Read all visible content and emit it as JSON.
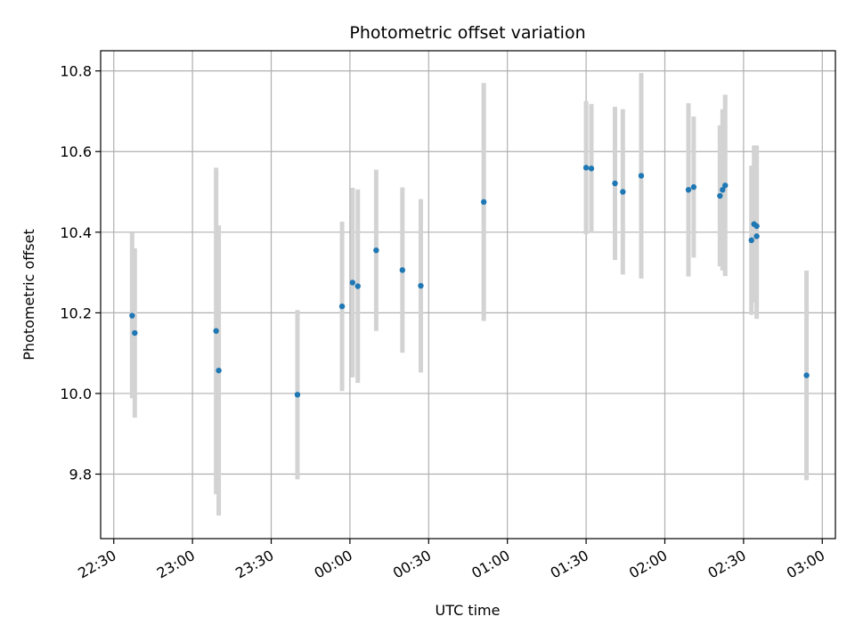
{
  "chart_data": {
    "type": "scatter",
    "title": "Photometric offset variation",
    "xlabel": "UTC time",
    "ylabel": "Photometric offset",
    "grid": true,
    "colors": {
      "point": "#1f77b4",
      "errorbar": "#d3d3d3",
      "grid": "#b0b0b0"
    },
    "x_ticks": [
      "22:30",
      "23:00",
      "23:30",
      "00:00",
      "00:30",
      "01:00",
      "01:30",
      "02:00",
      "02:30",
      "03:00"
    ],
    "y_ticks": [
      9.8,
      10.0,
      10.2,
      10.4,
      10.6,
      10.8
    ],
    "xlim": [
      "22:25",
      "03:05"
    ],
    "ylim": [
      9.64,
      10.85
    ],
    "series": [
      {
        "points": [
          {
            "x": "22:37",
            "y": 10.193,
            "err": 0.205
          },
          {
            "x": "22:38",
            "y": 10.15,
            "err": 0.21
          },
          {
            "x": "23:09",
            "y": 10.155,
            "err": 0.405
          },
          {
            "x": "23:10",
            "y": 10.057,
            "err": 0.36
          },
          {
            "x": "23:40",
            "y": 9.997,
            "err": 0.21
          },
          {
            "x": "23:57",
            "y": 10.216,
            "err": 0.21
          },
          {
            "x": "00:01",
            "y": 10.275,
            "err": 0.235
          },
          {
            "x": "00:03",
            "y": 10.266,
            "err": 0.24
          },
          {
            "x": "00:10",
            "y": 10.355,
            "err": 0.2
          },
          {
            "x": "00:20",
            "y": 10.306,
            "err": 0.205
          },
          {
            "x": "00:27",
            "y": 10.267,
            "err": 0.215
          },
          {
            "x": "00:51",
            "y": 10.475,
            "err": 0.295
          },
          {
            "x": "01:30",
            "y": 10.56,
            "err": 0.165
          },
          {
            "x": "01:32",
            "y": 10.558,
            "err": 0.16
          },
          {
            "x": "01:41",
            "y": 10.521,
            "err": 0.19
          },
          {
            "x": "01:44",
            "y": 10.5,
            "err": 0.205
          },
          {
            "x": "01:51",
            "y": 10.54,
            "err": 0.255
          },
          {
            "x": "02:09",
            "y": 10.505,
            "err": 0.215
          },
          {
            "x": "02:11",
            "y": 10.512,
            "err": 0.175
          },
          {
            "x": "02:21",
            "y": 10.49,
            "err": 0.175
          },
          {
            "x": "02:22",
            "y": 10.505,
            "err": 0.2
          },
          {
            "x": "02:23",
            "y": 10.516,
            "err": 0.225
          },
          {
            "x": "02:33",
            "y": 10.38,
            "err": 0.185
          },
          {
            "x": "02:34",
            "y": 10.42,
            "err": 0.195
          },
          {
            "x": "02:35",
            "y": 10.39,
            "err": 0.205
          },
          {
            "x": "02:35",
            "y": 10.415,
            "err": 0.2
          },
          {
            "x": "02:54",
            "y": 10.045,
            "err": 0.26
          }
        ]
      }
    ]
  }
}
